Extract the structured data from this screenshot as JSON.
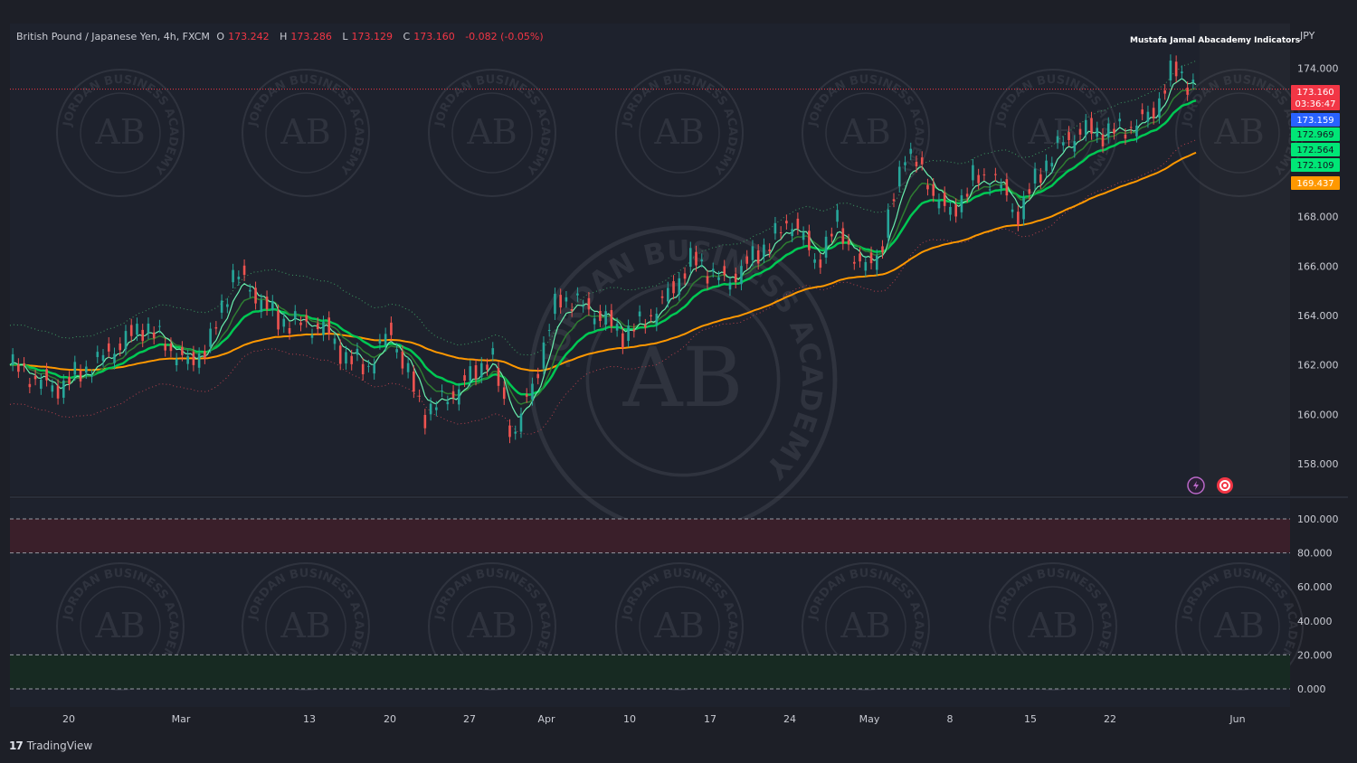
{
  "header": {
    "symbol": "British Pound / Japanese Yen, 4h, FXCM",
    "open_label": "O",
    "open": "173.242",
    "high_label": "H",
    "high": "173.286",
    "low_label": "L",
    "low": "173.129",
    "close_label": "C",
    "close": "173.160",
    "change": "-0.082 (-0.05%)"
  },
  "indicator_title": "Mustafa Jamal Abacademy Indicators",
  "currency": "JPY",
  "branding": {
    "logo_mark": "17",
    "logo_text": "TradingView"
  },
  "watermark": {
    "monogram": "AB",
    "ring_text": "JORDAN BUSINESS ACADEMY"
  },
  "price_tags": [
    {
      "value": "173.160",
      "sub": "03:36:47",
      "color": "#f23645"
    },
    {
      "value": "173.159",
      "color": "#2962ff"
    },
    {
      "value": "172.969",
      "color": "#00e676"
    },
    {
      "value": "172.564",
      "color": "#00e676"
    },
    {
      "value": "172.109",
      "color": "#00e676"
    },
    {
      "value": "169.437",
      "color": "#ff9800"
    }
  ],
  "icons": [
    "lightning-icon",
    "record-icon"
  ],
  "chart_data": [
    {
      "type": "line",
      "title": "British Pound / Japanese Yen, 4h, FXCM",
      "ylabel": "JPY",
      "ylim": [
        157,
        174.5
      ],
      "y_ticks": [
        "174.000",
        "172.000",
        "170.000",
        "168.000",
        "166.000",
        "164.000",
        "162.000",
        "160.000",
        "158.000"
      ],
      "x_ticks": [
        "20",
        "Mar",
        "13",
        "20",
        "27",
        "Apr",
        "10",
        "17",
        "24",
        "May",
        "8",
        "15",
        "22",
        "Jun"
      ],
      "series": [
        {
          "name": "",
          "color": "#26a69a",
          "x": [
            0,
            4,
            8,
            12,
            16,
            18,
            20,
            24,
            28,
            30,
            32,
            34,
            37,
            40,
            43,
            45,
            47,
            49,
            52,
            55,
            58,
            61,
            64,
            67,
            70,
            72,
            74,
            76,
            78,
            80,
            82,
            84,
            86,
            88,
            90,
            92,
            94,
            96,
            98,
            100,
            102,
            104,
            106
          ],
          "values": [
            162.0,
            161.0,
            162.2,
            163.6,
            162.0,
            163.0,
            165.8,
            163.8,
            163.5,
            162.3,
            161.9,
            163.4,
            160.0,
            161.0,
            162.4,
            159.0,
            161.6,
            164.8,
            164.2,
            163.2,
            164.3,
            166.3,
            165.3,
            166.6,
            167.9,
            166.1,
            167.8,
            165.8,
            166.8,
            170.8,
            169.4,
            168.0,
            169.5,
            169.6,
            168.0,
            169.8,
            171.0,
            171.5,
            171.4,
            171.6,
            172.1,
            174.0,
            173.16
          ]
        }
      ]
    },
    {
      "type": "line",
      "ylim": [
        0,
        100
      ],
      "y_ticks": [
        "100.000",
        "80.000",
        "60.000",
        "40.000",
        "20.000",
        "0.000"
      ],
      "bands": [
        [
          80,
          100
        ],
        [
          0,
          20
        ]
      ]
    }
  ]
}
